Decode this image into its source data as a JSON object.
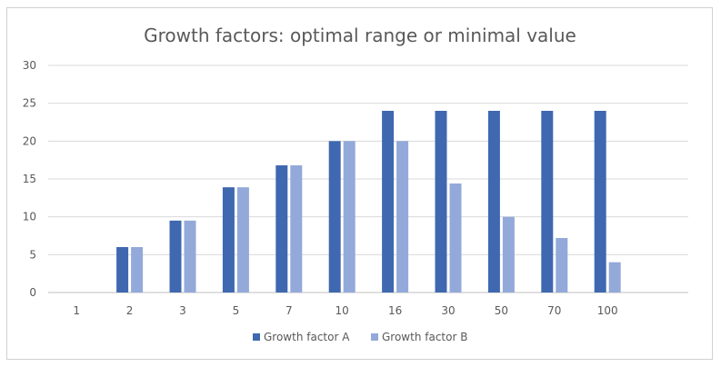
{
  "chart_data": {
    "type": "bar",
    "title": "Growth factors: optimal range or minimal value",
    "xlabel": "",
    "ylabel": "",
    "categories": [
      "1",
      "2",
      "3",
      "5",
      "7",
      "10",
      "16",
      "30",
      "50",
      "70",
      "100"
    ],
    "ylim": [
      0,
      30
    ],
    "yticks": [
      0,
      5,
      10,
      15,
      20,
      25,
      30
    ],
    "grid": true,
    "legend_position": "bottom",
    "series": [
      {
        "name": "Growth factor A",
        "color": "#3f68b0",
        "values": [
          0,
          6,
          9.5,
          13.9,
          16.8,
          20,
          24,
          24,
          24,
          24,
          24
        ]
      },
      {
        "name": "Growth factor B",
        "color": "#93a9d9",
        "values": [
          0,
          6,
          9.5,
          13.9,
          16.8,
          20,
          20,
          14.4,
          10,
          7.2,
          4
        ]
      }
    ]
  }
}
